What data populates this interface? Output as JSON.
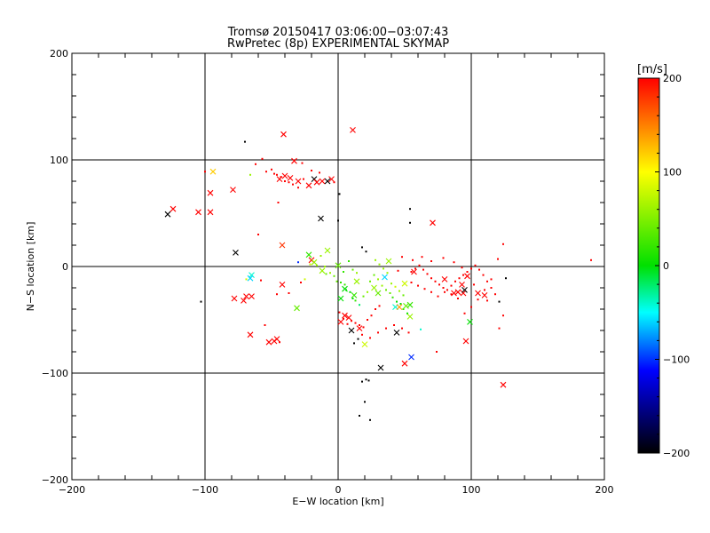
{
  "chart_data": {
    "type": "scatter",
    "title": "Tromsø 20150417 03:06:00−03:07:43",
    "subtitle": "RwPretec (8p) EXPERIMENTAL SKYMAP",
    "xlabel": "E−W location [km]",
    "ylabel": "N−S location [km]",
    "xlim": [
      -200,
      200
    ],
    "ylim": [
      -200,
      200
    ],
    "xticks": [
      -200,
      -100,
      0,
      100,
      200
    ],
    "yticks": [
      -200,
      -100,
      0,
      100,
      200
    ],
    "xtick_labels": [
      "−200",
      "−100",
      "0",
      "100",
      "200"
    ],
    "ytick_labels": [
      "−200",
      "−100",
      "0",
      "100",
      "200"
    ],
    "grid": true,
    "colorbar": {
      "label": "[m/s]",
      "range": [
        -200,
        200
      ],
      "ticks": [
        200,
        100,
        0,
        -100,
        -200
      ],
      "tick_labels": [
        "200",
        "100",
        "0",
        "−100",
        "−200"
      ]
    },
    "markers": {
      "big": "x",
      "small": "point"
    },
    "points_big": [
      [
        -128,
        49,
        -200
      ],
      [
        -124,
        54,
        200
      ],
      [
        -105,
        51,
        200
      ],
      [
        -96,
        51,
        200
      ],
      [
        -96,
        69,
        200
      ],
      [
        -94,
        89,
        120
      ],
      [
        -79,
        72,
        200
      ],
      [
        -77,
        13,
        -200
      ],
      [
        -65,
        -8,
        -40
      ],
      [
        -66,
        -11,
        -60
      ],
      [
        -65,
        -28,
        200
      ],
      [
        -78,
        -30,
        200
      ],
      [
        -71,
        -32,
        200
      ],
      [
        -69,
        -28,
        200
      ],
      [
        -66,
        -64,
        200
      ],
      [
        -52,
        -71,
        200
      ],
      [
        -48,
        -70,
        200
      ],
      [
        -46,
        -68,
        200
      ],
      [
        -41,
        124,
        200
      ],
      [
        -42,
        20,
        180
      ],
      [
        -42,
        -17,
        200
      ],
      [
        -31,
        -39,
        40
      ],
      [
        -33,
        99,
        200
      ],
      [
        -30,
        80,
        200
      ],
      [
        -36,
        83,
        200
      ],
      [
        -40,
        85,
        200
      ],
      [
        -44,
        82,
        200
      ],
      [
        -22,
        76,
        200
      ],
      [
        -18,
        82,
        -200
      ],
      [
        -16,
        79,
        200
      ],
      [
        -12,
        80,
        200
      ],
      [
        -5,
        82,
        200
      ],
      [
        -8,
        80,
        -200
      ],
      [
        -13,
        45,
        -200
      ],
      [
        -8,
        15,
        60
      ],
      [
        -20,
        6,
        200
      ],
      [
        11,
        128,
        200
      ],
      [
        14,
        -14,
        60
      ],
      [
        27,
        -20,
        60
      ],
      [
        35,
        -10,
        -60
      ],
      [
        38,
        5,
        60
      ],
      [
        43,
        -38,
        -40
      ],
      [
        46,
        -38,
        140
      ],
      [
        44,
        -62,
        -200
      ],
      [
        54,
        -47,
        60
      ],
      [
        55,
        -85,
        -100
      ],
      [
        50,
        -91,
        200
      ],
      [
        32,
        -95,
        -200
      ],
      [
        20,
        -73,
        80
      ],
      [
        16,
        -58,
        200
      ],
      [
        10,
        -60,
        -200
      ],
      [
        8,
        -48,
        200
      ],
      [
        2,
        -52,
        200
      ],
      [
        5,
        -46,
        200
      ],
      [
        -22,
        11,
        20
      ],
      [
        -18,
        4,
        60
      ],
      [
        -12,
        -4,
        60
      ],
      [
        0,
        1,
        40
      ],
      [
        2,
        -30,
        0
      ],
      [
        5,
        -21,
        0
      ],
      [
        12,
        -27,
        20
      ],
      [
        30,
        -25,
        40
      ],
      [
        50,
        -16,
        80
      ],
      [
        57,
        -5,
        200
      ],
      [
        71,
        41,
        200
      ],
      [
        80,
        -12,
        200
      ],
      [
        87,
        -25,
        200
      ],
      [
        90,
        -24,
        200
      ],
      [
        93,
        -17,
        200
      ],
      [
        94,
        -25,
        200
      ],
      [
        95,
        -22,
        -200
      ],
      [
        97,
        -9,
        200
      ],
      [
        96,
        -70,
        200
      ],
      [
        99,
        -52,
        0
      ],
      [
        105,
        -25,
        200
      ],
      [
        110,
        -27,
        200
      ],
      [
        124,
        -111,
        200
      ],
      [
        54,
        -36,
        20
      ],
      [
        51,
        -37,
        40
      ]
    ],
    "points_small": [
      [
        -70,
        117,
        -200
      ],
      [
        -66,
        86,
        60
      ],
      [
        -62,
        96,
        200
      ],
      [
        -57,
        101,
        200
      ],
      [
        -54,
        89,
        200
      ],
      [
        -50,
        91,
        200
      ],
      [
        -48,
        87,
        200
      ],
      [
        -46,
        86,
        200
      ],
      [
        -43,
        84,
        200
      ],
      [
        -40,
        80,
        200
      ],
      [
        -37,
        79,
        200
      ],
      [
        -34,
        77,
        200
      ],
      [
        -30,
        74,
        200
      ],
      [
        -26,
        82,
        200
      ],
      [
        -27,
        97,
        200
      ],
      [
        -20,
        90,
        200
      ],
      [
        -14,
        88,
        200
      ],
      [
        -3,
        79,
        200
      ],
      [
        1,
        68,
        -200
      ],
      [
        0,
        43,
        -200
      ],
      [
        -60,
        30,
        200
      ],
      [
        -55,
        -55,
        200
      ],
      [
        -44,
        -71,
        200
      ],
      [
        -103,
        -33,
        -200
      ],
      [
        -69,
        -12,
        80
      ],
      [
        -58,
        -13,
        200
      ],
      [
        -46,
        -26,
        200
      ],
      [
        -37,
        -25,
        200
      ],
      [
        -28,
        -15,
        200
      ],
      [
        -25,
        -12,
        80
      ],
      [
        -30,
        4,
        -100
      ],
      [
        -21,
        2,
        80
      ],
      [
        -16,
        1,
        60
      ],
      [
        -13,
        10,
        60
      ],
      [
        -10,
        0,
        60
      ],
      [
        -9,
        -7,
        40
      ],
      [
        -6,
        -6,
        60
      ],
      [
        -3,
        -9,
        40
      ],
      [
        -1,
        -14,
        40
      ],
      [
        2,
        -15,
        20
      ],
      [
        5,
        -17,
        20
      ],
      [
        6,
        -22,
        0
      ],
      [
        9,
        -24,
        0
      ],
      [
        11,
        -30,
        0
      ],
      [
        13,
        -32,
        20
      ],
      [
        16,
        -36,
        -20
      ],
      [
        19,
        -28,
        40
      ],
      [
        22,
        -24,
        60
      ],
      [
        24,
        -14,
        40
      ],
      [
        27,
        -8,
        40
      ],
      [
        30,
        -12,
        60
      ],
      [
        33,
        -18,
        60
      ],
      [
        36,
        -22,
        40
      ],
      [
        39,
        -25,
        40
      ],
      [
        41,
        -29,
        20
      ],
      [
        44,
        -33,
        0
      ],
      [
        47,
        -35,
        0
      ],
      [
        49,
        -40,
        20
      ],
      [
        52,
        -44,
        0
      ],
      [
        49,
        -27,
        40
      ],
      [
        46,
        -23,
        60
      ],
      [
        43,
        -19,
        80
      ],
      [
        40,
        -16,
        60
      ],
      [
        37,
        -6,
        60
      ],
      [
        34,
        -2,
        60
      ],
      [
        31,
        2,
        60
      ],
      [
        28,
        6,
        60
      ],
      [
        21,
        14,
        -200
      ],
      [
        18,
        18,
        -200
      ],
      [
        14,
        -6,
        60
      ],
      [
        11,
        -3,
        40
      ],
      [
        8,
        5,
        20
      ],
      [
        4,
        -5,
        20
      ],
      [
        1,
        -43,
        200
      ],
      [
        4,
        -49,
        200
      ],
      [
        7,
        -54,
        200
      ],
      [
        10,
        -51,
        200
      ],
      [
        13,
        -53,
        200
      ],
      [
        16,
        -55,
        200
      ],
      [
        19,
        -57,
        200
      ],
      [
        22,
        -50,
        200
      ],
      [
        25,
        -46,
        200
      ],
      [
        28,
        -40,
        200
      ],
      [
        31,
        -37,
        200
      ],
      [
        18,
        -64,
        200
      ],
      [
        15,
        -68,
        -200
      ],
      [
        12,
        -72,
        -200
      ],
      [
        24,
        -67,
        200
      ],
      [
        30,
        -62,
        200
      ],
      [
        36,
        -58,
        200
      ],
      [
        42,
        -55,
        200
      ],
      [
        48,
        -58,
        200
      ],
      [
        53,
        -62,
        200
      ],
      [
        62,
        -59,
        -40
      ],
      [
        74,
        -80,
        200
      ],
      [
        23,
        -107,
        -200
      ],
      [
        21,
        -106,
        -200
      ],
      [
        18,
        -108,
        -200
      ],
      [
        20,
        -127,
        -200
      ],
      [
        16,
        -140,
        -200
      ],
      [
        24,
        -144,
        -200
      ],
      [
        54,
        54,
        -200
      ],
      [
        54,
        41,
        -200
      ],
      [
        55,
        -5,
        200
      ],
      [
        58,
        -2,
        200
      ],
      [
        61,
        1,
        200
      ],
      [
        64,
        -3,
        200
      ],
      [
        67,
        -7,
        200
      ],
      [
        70,
        -11,
        200
      ],
      [
        73,
        -14,
        200
      ],
      [
        76,
        -17,
        200
      ],
      [
        79,
        -20,
        200
      ],
      [
        82,
        -22,
        200
      ],
      [
        85,
        -18,
        200
      ],
      [
        88,
        -14,
        200
      ],
      [
        91,
        -11,
        200
      ],
      [
        94,
        -8,
        200
      ],
      [
        97,
        -5,
        200
      ],
      [
        100,
        -2,
        200
      ],
      [
        103,
        1,
        200
      ],
      [
        106,
        -3,
        200
      ],
      [
        109,
        -8,
        200
      ],
      [
        112,
        -14,
        200
      ],
      [
        115,
        -20,
        200
      ],
      [
        118,
        -26,
        200
      ],
      [
        121,
        -33,
        -200
      ],
      [
        124,
        -46,
        200
      ],
      [
        121,
        -58,
        200
      ],
      [
        126,
        -11,
        -200
      ],
      [
        124,
        21,
        200
      ],
      [
        120,
        7,
        200
      ],
      [
        115,
        -12,
        200
      ],
      [
        110,
        -22,
        200
      ],
      [
        105,
        -31,
        200
      ],
      [
        100,
        -38,
        200
      ],
      [
        95,
        -44,
        200
      ],
      [
        90,
        -30,
        200
      ],
      [
        85,
        -26,
        200
      ],
      [
        80,
        -24,
        200
      ],
      [
        75,
        -28,
        200
      ],
      [
        70,
        -24,
        200
      ],
      [
        65,
        -21,
        200
      ],
      [
        60,
        -18,
        200
      ],
      [
        55,
        -15,
        200
      ],
      [
        112,
        -32,
        200
      ],
      [
        102,
        -17,
        200
      ],
      [
        93,
        -1,
        200
      ],
      [
        87,
        4,
        200
      ],
      [
        79,
        8,
        200
      ],
      [
        70,
        5,
        200
      ],
      [
        63,
        9,
        200
      ],
      [
        56,
        6,
        200
      ],
      [
        48,
        9,
        200
      ],
      [
        45,
        -4,
        200
      ],
      [
        190,
        6,
        200
      ],
      [
        -100,
        89,
        200
      ],
      [
        -45,
        60,
        200
      ]
    ]
  }
}
